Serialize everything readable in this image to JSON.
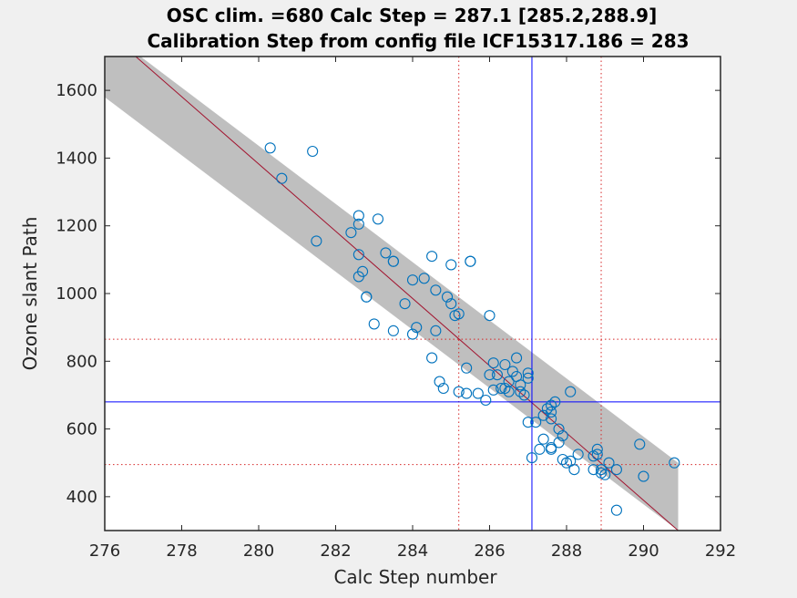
{
  "chart_data": {
    "type": "scatter",
    "title": "OSC clim. =680   Calc Step = 287.1 [285.2,288.9]",
    "subtitle": "Calibration Step from config file ICF15317.186 = 283",
    "xlabel": "Calc Step number",
    "ylabel": "Ozone slant Path",
    "xlim": [
      276,
      292
    ],
    "ylim": [
      300,
      1700
    ],
    "xticks": [
      276,
      278,
      280,
      282,
      284,
      286,
      288,
      290,
      292
    ],
    "yticks": [
      400,
      600,
      800,
      1000,
      1200,
      1400,
      1600
    ],
    "grid": false,
    "legend": "none",
    "fit_line": {
      "x": [
        276.0,
        290.9
      ],
      "y": [
        1780,
        300
      ]
    },
    "confidence_band": {
      "upper": [
        [
          276.0,
          1780
        ],
        [
          290.9,
          500
        ]
      ],
      "lower": [
        [
          276.0,
          1580
        ],
        [
          290.9,
          300
        ]
      ]
    },
    "reference_lines": {
      "osc_clim": 680,
      "calc_step": 287.1,
      "calc_step_ci": [
        285.2,
        288.9
      ],
      "osc_ci": [
        865,
        495
      ]
    },
    "points": {
      "x": [
        280.3,
        280.6,
        281.4,
        281.5,
        282.4,
        282.6,
        282.6,
        282.6,
        283.1,
        282.6,
        283.3,
        283.5,
        283.5,
        282.7,
        282.8,
        282.8,
        284.0,
        284.3,
        284.5,
        285.0,
        285.5,
        285.5,
        284.6,
        284.9,
        285.0,
        285.1,
        285.2,
        283.8,
        283.0,
        283.5,
        284.0,
        284.1,
        284.6,
        284.5,
        286.0,
        284.7,
        284.8,
        285.2,
        285.4,
        285.4,
        285.7,
        286.1,
        286.2,
        286.4,
        286.0,
        286.3,
        286.5,
        286.6,
        286.7,
        286.8,
        286.9,
        287.0,
        286.4,
        286.8,
        286.5,
        286.1,
        285.9,
        286.7,
        287.0,
        287.0,
        287.2,
        287.4,
        287.5,
        287.6,
        287.7,
        287.6,
        287.8,
        287.9,
        287.6,
        288.1,
        287.6,
        287.4,
        287.6,
        287.8,
        287.9,
        288.0,
        288.1,
        288.3,
        288.2,
        287.3,
        287.1,
        288.8,
        288.8,
        288.7,
        288.9,
        289.1,
        289.0,
        289.3,
        289.3,
        289.9,
        290.0,
        290.8,
        288.9,
        288.7
      ],
      "y": [
        1430,
        1340,
        1420,
        1155,
        1180,
        1230,
        1205,
        1115,
        1220,
        1050,
        1120,
        1095,
        1095,
        1065,
        990,
        990,
        1040,
        1045,
        1110,
        1085,
        1095,
        1095,
        1010,
        990,
        970,
        935,
        940,
        970,
        910,
        890,
        880,
        900,
        890,
        810,
        935,
        740,
        720,
        710,
        705,
        780,
        705,
        795,
        760,
        790,
        760,
        720,
        740,
        770,
        755,
        730,
        700,
        765,
        720,
        710,
        710,
        715,
        685,
        810,
        750,
        620,
        620,
        640,
        660,
        670,
        680,
        630,
        600,
        580,
        650,
        710,
        545,
        570,
        540,
        560,
        510,
        500,
        505,
        525,
        480,
        540,
        515,
        540,
        525,
        480,
        470,
        500,
        465,
        360,
        480,
        555,
        460,
        500,
        480,
        520
      ]
    }
  }
}
